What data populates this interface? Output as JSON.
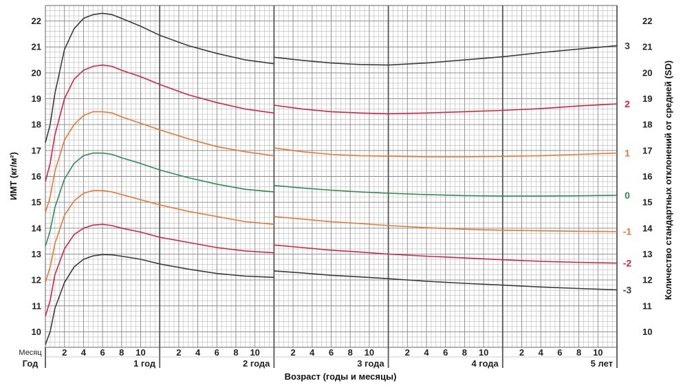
{
  "chart_data": {
    "type": "line",
    "xlabel": "Возраст (годы и месяцы)",
    "ylabel": "ИМТ (кг/м²)",
    "y2label": "Количество стандартных отклонений от средней (SD)",
    "row_label_months": "Месяц",
    "row_label_years": "Год",
    "xlim_months": [
      0,
      60
    ],
    "ylim": [
      9.4,
      22.6
    ],
    "y_ticks": [
      10,
      11,
      12,
      13,
      14,
      15,
      16,
      17,
      18,
      19,
      20,
      21,
      22
    ],
    "grid": true,
    "month_ticks": [
      "2",
      "4",
      "6",
      "8",
      "10"
    ],
    "year_ticks": [
      {
        "month": 12,
        "label": "1 год"
      },
      {
        "month": 24,
        "label": "2 года"
      },
      {
        "month": 36,
        "label": "3 года"
      },
      {
        "month": 48,
        "label": "4 года"
      },
      {
        "month": 60,
        "label": "5 лет"
      }
    ],
    "series": [
      {
        "name": "3",
        "color": "#3a3a3a",
        "points": [
          [
            0,
            17.3
          ],
          [
            0.5,
            18.0
          ],
          [
            1,
            19.2
          ],
          [
            2,
            20.9
          ],
          [
            3,
            21.7
          ],
          [
            4,
            22.1
          ],
          [
            5,
            22.25
          ],
          [
            6,
            22.3
          ],
          [
            7,
            22.25
          ],
          [
            8,
            22.1
          ],
          [
            10,
            21.8
          ],
          [
            12,
            21.45
          ],
          [
            15,
            21.05
          ],
          [
            18,
            20.75
          ],
          [
            21,
            20.5
          ],
          [
            24,
            20.35
          ],
          [
            24.01,
            20.6
          ],
          [
            27,
            20.48
          ],
          [
            30,
            20.38
          ],
          [
            33,
            20.32
          ],
          [
            36,
            20.3
          ],
          [
            40,
            20.38
          ],
          [
            44,
            20.5
          ],
          [
            48,
            20.62
          ],
          [
            52,
            20.78
          ],
          [
            56,
            20.92
          ],
          [
            60,
            21.05
          ]
        ]
      },
      {
        "name": "2",
        "color": "#d0234a",
        "points": [
          [
            0,
            15.8
          ],
          [
            0.5,
            16.5
          ],
          [
            1,
            17.6
          ],
          [
            2,
            19.0
          ],
          [
            3,
            19.75
          ],
          [
            4,
            20.1
          ],
          [
            5,
            20.25
          ],
          [
            6,
            20.3
          ],
          [
            7,
            20.25
          ],
          [
            8,
            20.1
          ],
          [
            10,
            19.85
          ],
          [
            12,
            19.55
          ],
          [
            15,
            19.15
          ],
          [
            18,
            18.85
          ],
          [
            21,
            18.6
          ],
          [
            24,
            18.45
          ],
          [
            24.01,
            18.75
          ],
          [
            27,
            18.6
          ],
          [
            30,
            18.5
          ],
          [
            33,
            18.45
          ],
          [
            36,
            18.42
          ],
          [
            40,
            18.45
          ],
          [
            44,
            18.5
          ],
          [
            48,
            18.55
          ],
          [
            52,
            18.62
          ],
          [
            56,
            18.72
          ],
          [
            60,
            18.8
          ]
        ]
      },
      {
        "name": "1",
        "color": "#e8782e",
        "points": [
          [
            0,
            14.6
          ],
          [
            0.5,
            15.2
          ],
          [
            1,
            16.2
          ],
          [
            2,
            17.4
          ],
          [
            3,
            18.0
          ],
          [
            4,
            18.35
          ],
          [
            5,
            18.5
          ],
          [
            6,
            18.5
          ],
          [
            7,
            18.45
          ],
          [
            8,
            18.3
          ],
          [
            10,
            18.05
          ],
          [
            12,
            17.8
          ],
          [
            15,
            17.45
          ],
          [
            18,
            17.15
          ],
          [
            21,
            16.95
          ],
          [
            24,
            16.8
          ],
          [
            24.01,
            17.1
          ],
          [
            27,
            16.95
          ],
          [
            30,
            16.85
          ],
          [
            33,
            16.8
          ],
          [
            36,
            16.78
          ],
          [
            40,
            16.76
          ],
          [
            44,
            16.76
          ],
          [
            48,
            16.77
          ],
          [
            52,
            16.8
          ],
          [
            56,
            16.85
          ],
          [
            60,
            16.9
          ]
        ]
      },
      {
        "name": "0",
        "color": "#2e8b57",
        "points": [
          [
            0,
            13.3
          ],
          [
            0.5,
            13.9
          ],
          [
            1,
            14.8
          ],
          [
            2,
            15.9
          ],
          [
            3,
            16.5
          ],
          [
            4,
            16.8
          ],
          [
            5,
            16.9
          ],
          [
            6,
            16.9
          ],
          [
            7,
            16.85
          ],
          [
            8,
            16.72
          ],
          [
            10,
            16.5
          ],
          [
            12,
            16.25
          ],
          [
            15,
            15.95
          ],
          [
            18,
            15.7
          ],
          [
            21,
            15.5
          ],
          [
            24,
            15.4
          ],
          [
            24.01,
            15.65
          ],
          [
            27,
            15.55
          ],
          [
            30,
            15.47
          ],
          [
            33,
            15.4
          ],
          [
            36,
            15.35
          ],
          [
            40,
            15.3
          ],
          [
            44,
            15.26
          ],
          [
            48,
            15.24
          ],
          [
            52,
            15.24
          ],
          [
            56,
            15.25
          ],
          [
            60,
            15.27
          ]
        ]
      },
      {
        "name": "-1",
        "color": "#e8782e",
        "points": [
          [
            0,
            11.9
          ],
          [
            0.5,
            12.5
          ],
          [
            1,
            13.4
          ],
          [
            2,
            14.5
          ],
          [
            3,
            15.05
          ],
          [
            4,
            15.35
          ],
          [
            5,
            15.45
          ],
          [
            6,
            15.45
          ],
          [
            7,
            15.4
          ],
          [
            8,
            15.3
          ],
          [
            10,
            15.1
          ],
          [
            12,
            14.9
          ],
          [
            15,
            14.65
          ],
          [
            18,
            14.45
          ],
          [
            21,
            14.25
          ],
          [
            24,
            14.15
          ],
          [
            24.01,
            14.45
          ],
          [
            27,
            14.35
          ],
          [
            30,
            14.25
          ],
          [
            33,
            14.18
          ],
          [
            36,
            14.1
          ],
          [
            40,
            14.02
          ],
          [
            44,
            13.96
          ],
          [
            48,
            13.92
          ],
          [
            52,
            13.9
          ],
          [
            56,
            13.88
          ],
          [
            60,
            13.87
          ]
        ]
      },
      {
        "name": "-2",
        "color": "#d0234a",
        "points": [
          [
            0,
            10.6
          ],
          [
            0.5,
            11.2
          ],
          [
            1,
            12.2
          ],
          [
            2,
            13.2
          ],
          [
            3,
            13.75
          ],
          [
            4,
            14.0
          ],
          [
            5,
            14.12
          ],
          [
            6,
            14.15
          ],
          [
            7,
            14.1
          ],
          [
            8,
            14.0
          ],
          [
            10,
            13.85
          ],
          [
            12,
            13.65
          ],
          [
            15,
            13.45
          ],
          [
            18,
            13.25
          ],
          [
            21,
            13.12
          ],
          [
            24,
            13.05
          ],
          [
            24.01,
            13.35
          ],
          [
            27,
            13.25
          ],
          [
            30,
            13.15
          ],
          [
            33,
            13.08
          ],
          [
            36,
            13.0
          ],
          [
            40,
            12.92
          ],
          [
            44,
            12.85
          ],
          [
            48,
            12.78
          ],
          [
            52,
            12.72
          ],
          [
            56,
            12.68
          ],
          [
            60,
            12.65
          ]
        ]
      },
      {
        "name": "-3",
        "color": "#3a3a3a",
        "points": [
          [
            0,
            9.5
          ],
          [
            0.5,
            10.0
          ],
          [
            1,
            10.9
          ],
          [
            2,
            11.9
          ],
          [
            3,
            12.5
          ],
          [
            4,
            12.8
          ],
          [
            5,
            12.93
          ],
          [
            6,
            12.98
          ],
          [
            7,
            12.97
          ],
          [
            8,
            12.92
          ],
          [
            10,
            12.8
          ],
          [
            12,
            12.62
          ],
          [
            15,
            12.42
          ],
          [
            18,
            12.25
          ],
          [
            21,
            12.15
          ],
          [
            24,
            12.1
          ],
          [
            24.01,
            12.35
          ],
          [
            27,
            12.27
          ],
          [
            30,
            12.18
          ],
          [
            33,
            12.12
          ],
          [
            36,
            12.05
          ],
          [
            40,
            11.95
          ],
          [
            44,
            11.87
          ],
          [
            48,
            11.8
          ],
          [
            52,
            11.73
          ],
          [
            56,
            11.67
          ],
          [
            60,
            11.62
          ]
        ]
      }
    ]
  }
}
